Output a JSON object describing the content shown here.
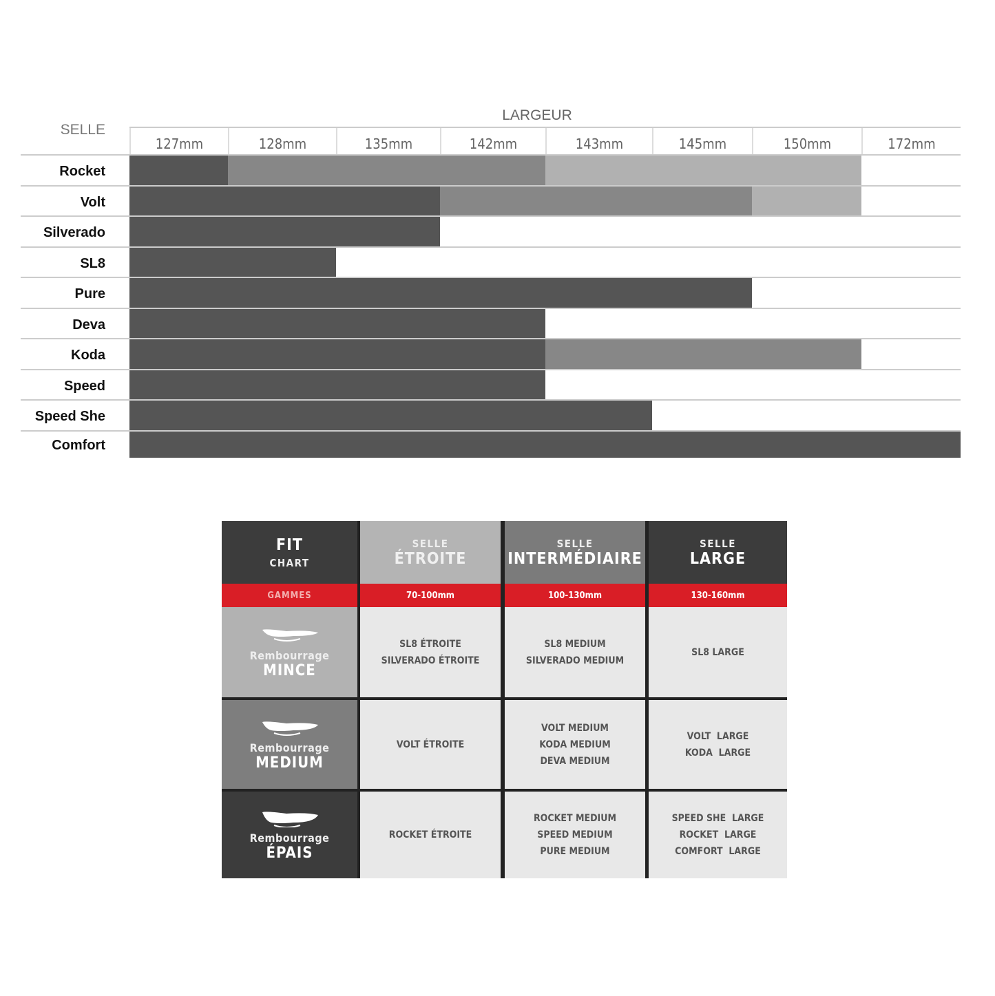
{
  "chart_data": {
    "type": "bar",
    "title": "LARGEUR",
    "row_header": "SELLE",
    "categories": [
      "127mm",
      "128mm",
      "135mm",
      "142mm",
      "143mm",
      "145mm",
      "150mm",
      "172mm"
    ],
    "colors": {
      "dark": "#555555",
      "mid": "#878787",
      "light": "#b1b1b1"
    },
    "rows": [
      {
        "name": "Rocket",
        "segments": [
          {
            "from": "127mm",
            "to": "127mm",
            "shade": "dark"
          },
          {
            "from": "128mm",
            "to": "142mm",
            "shade": "mid"
          },
          {
            "from": "143mm",
            "to": "150mm",
            "shade": "light"
          }
        ]
      },
      {
        "name": "Volt",
        "segments": [
          {
            "from": "127mm",
            "to": "135mm",
            "shade": "dark"
          },
          {
            "from": "142mm",
            "to": "145mm",
            "shade": "mid"
          },
          {
            "from": "150mm",
            "to": "150mm",
            "shade": "light"
          }
        ]
      },
      {
        "name": "Silverado",
        "segments": [
          {
            "from": "127mm",
            "to": "135mm",
            "shade": "dark"
          }
        ]
      },
      {
        "name": "SL8",
        "segments": [
          {
            "from": "127mm",
            "to": "128mm",
            "shade": "dark"
          }
        ]
      },
      {
        "name": "Pure",
        "segments": [
          {
            "from": "127mm",
            "to": "145mm",
            "shade": "dark"
          }
        ]
      },
      {
        "name": "Deva",
        "segments": [
          {
            "from": "127mm",
            "to": "142mm",
            "shade": "dark"
          }
        ]
      },
      {
        "name": "Koda",
        "segments": [
          {
            "from": "127mm",
            "to": "142mm",
            "shade": "dark"
          },
          {
            "from": "143mm",
            "to": "150mm",
            "shade": "mid"
          }
        ]
      },
      {
        "name": "Speed",
        "segments": [
          {
            "from": "127mm",
            "to": "142mm",
            "shade": "dark"
          }
        ]
      },
      {
        "name": "Speed She",
        "segments": [
          {
            "from": "127mm",
            "to": "143mm",
            "shade": "dark"
          }
        ]
      },
      {
        "name": "Comfort",
        "segments": [
          {
            "from": "127mm",
            "to": "172mm",
            "shade": "dark"
          }
        ]
      }
    ]
  },
  "fit_chart": {
    "corner": {
      "top": "FIT",
      "bottom": "CHART",
      "band": "GAMMES"
    },
    "columns": [
      {
        "small": "SELLE",
        "big": "ÉTROITE",
        "range": "70-100mm",
        "bg": "#b4b4b4"
      },
      {
        "small": "SELLE",
        "big": "INTERMÉDIAIRE",
        "range": "100-130mm",
        "bg": "#7b7b7b"
      },
      {
        "small": "SELLE",
        "big": "LARGE",
        "range": "130-160mm",
        "bg": "#3c3c3c"
      }
    ],
    "rows": [
      {
        "label": "Rembourrage",
        "level": "MINCE",
        "bg": "#b2b2b2",
        "cells": [
          [
            "SL8 ÉTROITE",
            "SILVERADO ÉTROITE"
          ],
          [
            "SL8 MEDIUM",
            "SILVERADO MEDIUM"
          ],
          [
            "SL8 LARGE"
          ]
        ]
      },
      {
        "label": "Rembourrage",
        "level": "MEDIUM",
        "bg": "#7e7e7e",
        "cells": [
          [
            "VOLT ÉTROITE"
          ],
          [
            "VOLT MEDIUM",
            "KODA MEDIUM",
            "DEVA MEDIUM"
          ],
          [
            "VOLT  LARGE",
            "KODA  LARGE"
          ]
        ]
      },
      {
        "label": "Rembourrage",
        "level": "ÉPAIS",
        "bg": "#3c3c3c",
        "cells": [
          [
            "ROCKET ÉTROITE"
          ],
          [
            "ROCKET MEDIUM",
            "SPEED MEDIUM",
            "PURE MEDIUM"
          ],
          [
            "SPEED SHE  LARGE",
            "ROCKET  LARGE",
            "COMFORT  LARGE"
          ]
        ]
      }
    ]
  }
}
